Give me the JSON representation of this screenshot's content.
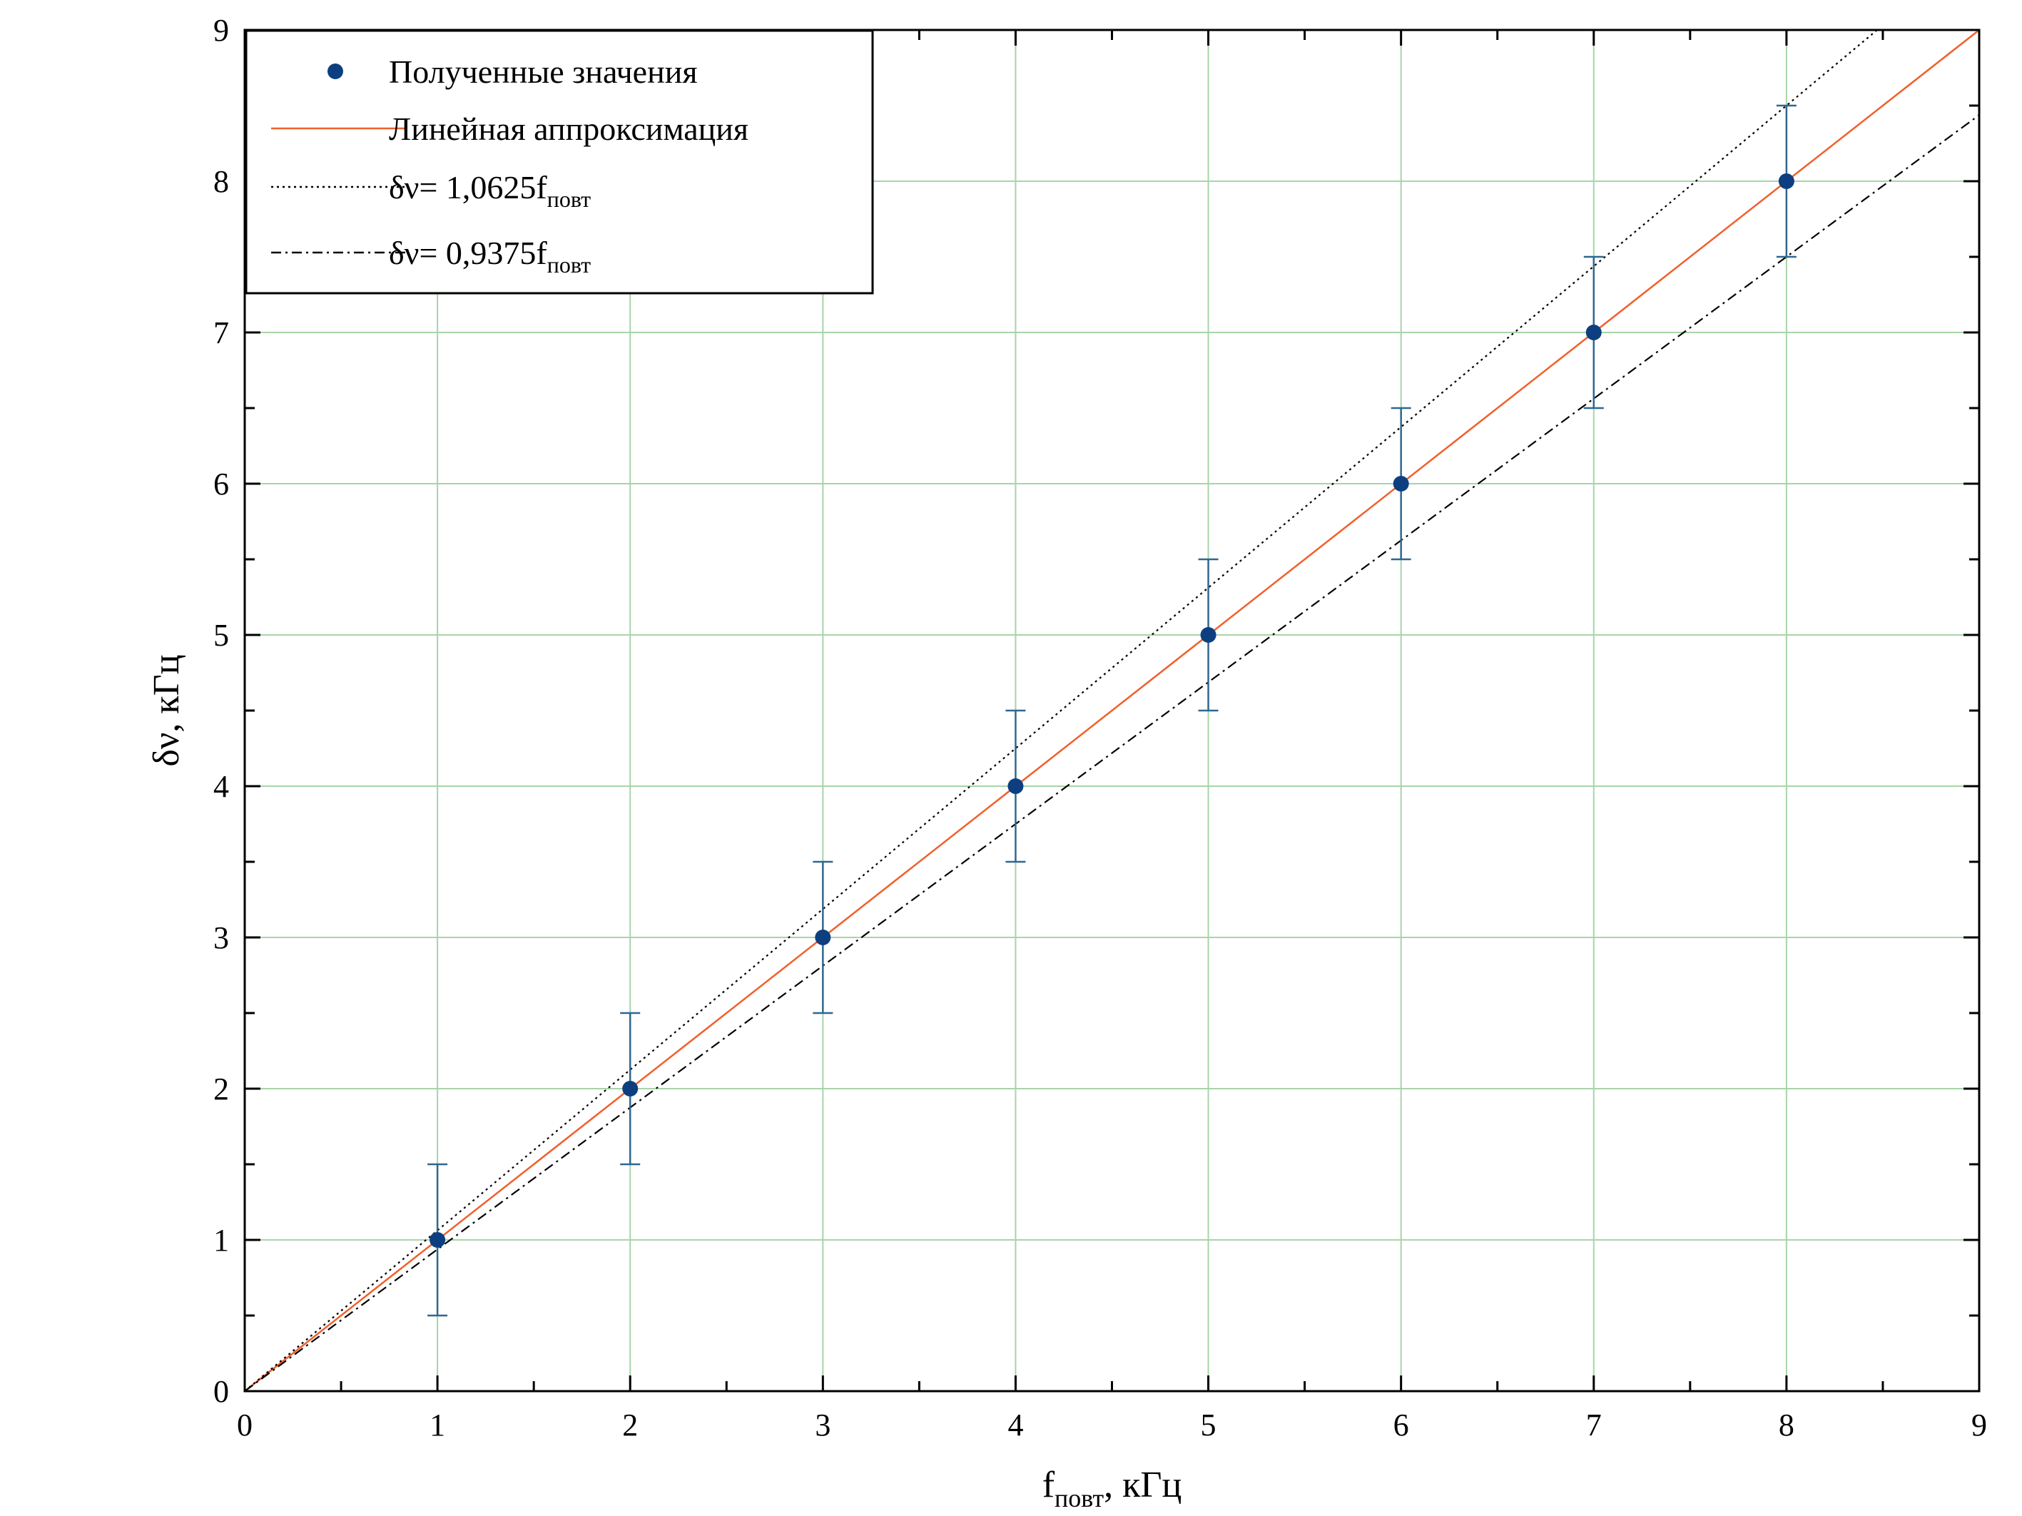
{
  "chart_data": {
    "type": "scatter",
    "title": "",
    "xlabel_main": "f",
    "xlabel_sub": "повт",
    "xlabel_tail": ", кГц",
    "ylabel": "δν, кГц",
    "xlim": [
      0,
      9
    ],
    "ylim": [
      0,
      9
    ],
    "xticks": [
      "0",
      "1",
      "2",
      "3",
      "4",
      "5",
      "6",
      "7",
      "8",
      "9"
    ],
    "yticks": [
      "0",
      "1",
      "2",
      "3",
      "4",
      "5",
      "6",
      "7",
      "8",
      "9"
    ],
    "grid": true,
    "legend_position": "top-left",
    "points": {
      "name": "Полученные значения",
      "x": [
        1,
        2,
        3,
        4,
        5,
        6,
        7,
        8
      ],
      "y": [
        1,
        2,
        3,
        4,
        5,
        6,
        7,
        8
      ],
      "yerr": [
        0.5,
        0.5,
        0.5,
        0.5,
        0.5,
        0.5,
        0.5,
        0.5
      ],
      "color": "#0d3f80",
      "error_color": "#2f6790"
    },
    "lines": [
      {
        "name": "Линейная аппроксимация",
        "slope": 1.0,
        "style": "solid",
        "color": "#f0602a"
      },
      {
        "name": "δν= 1,0625f",
        "name_sub": "повт",
        "slope": 1.0625,
        "style": "dotted",
        "color": "#000000"
      },
      {
        "name": "δν= 0,9375f",
        "name_sub": "повт",
        "slope": 0.9375,
        "style": "dashdot",
        "color": "#000000"
      }
    ],
    "grid_color": "#a8d4a8"
  }
}
